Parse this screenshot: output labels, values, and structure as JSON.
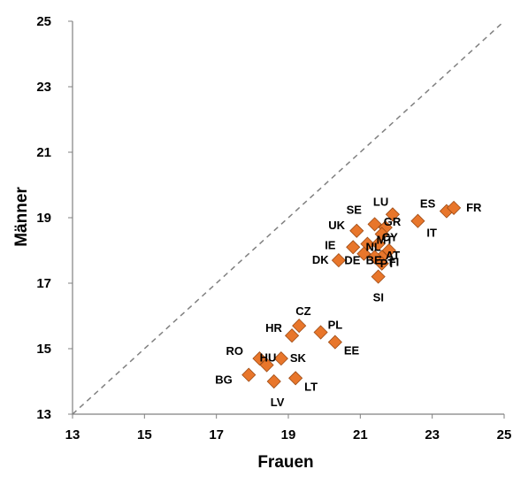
{
  "chart_data": {
    "type": "scatter",
    "title": "",
    "xlabel": "Frauen",
    "ylabel": "Männer",
    "xlim": [
      13,
      25
    ],
    "ylim": [
      13,
      25
    ],
    "xticks": [
      "13",
      "15",
      "17",
      "19",
      "21",
      "23",
      "25"
    ],
    "yticks": [
      "13",
      "15",
      "17",
      "19",
      "21",
      "23",
      "25"
    ],
    "reference_line": "y = x (dashed)",
    "marker": "diamond",
    "colors": {
      "marker_fill": "#e8762b",
      "marker_stroke": "#9c4a14",
      "reference_line": "#808080",
      "axis": "#808080"
    },
    "points": [
      {
        "label": "ES",
        "x": 23.4,
        "y": 19.2
      },
      {
        "label": "FR",
        "x": 23.6,
        "y": 19.3
      },
      {
        "label": "IT",
        "x": 22.6,
        "y": 18.9
      },
      {
        "label": "LU",
        "x": 21.9,
        "y": 19.1
      },
      {
        "label": "SE",
        "x": 21.4,
        "y": 18.8
      },
      {
        "label": "GR",
        "x": 21.7,
        "y": 18.7
      },
      {
        "label": "UK",
        "x": 20.9,
        "y": 18.6
      },
      {
        "label": "CY",
        "x": 21.6,
        "y": 18.5
      },
      {
        "label": "MT",
        "x": 21.5,
        "y": 18.2
      },
      {
        "label": "NL",
        "x": 21.2,
        "y": 18.2
      },
      {
        "label": "AT",
        "x": 21.8,
        "y": 18.0
      },
      {
        "label": "IE",
        "x": 20.8,
        "y": 18.1
      },
      {
        "label": "DE",
        "x": 21.1,
        "y": 17.9
      },
      {
        "label": "FI",
        "x": 21.6,
        "y": 17.8
      },
      {
        "label": "BE",
        "x": 21.4,
        "y": 17.8
      },
      {
        "label": "DK",
        "x": 20.4,
        "y": 17.7
      },
      {
        "label": "PT",
        "x": 21.6,
        "y": 17.6
      },
      {
        "label": "SI",
        "x": 21.5,
        "y": 17.2
      },
      {
        "label": "CZ",
        "x": 19.3,
        "y": 15.7
      },
      {
        "label": "HR",
        "x": 19.1,
        "y": 15.4
      },
      {
        "label": "PL",
        "x": 19.9,
        "y": 15.5
      },
      {
        "label": "EE",
        "x": 20.3,
        "y": 15.2
      },
      {
        "label": "RO",
        "x": 18.2,
        "y": 14.7
      },
      {
        "label": "HU",
        "x": 18.4,
        "y": 14.5
      },
      {
        "label": "SK",
        "x": 18.8,
        "y": 14.7
      },
      {
        "label": "BG",
        "x": 17.9,
        "y": 14.2
      },
      {
        "label": "LT",
        "x": 19.2,
        "y": 14.1
      },
      {
        "label": "LV",
        "x": 18.6,
        "y": 14.0
      }
    ]
  }
}
